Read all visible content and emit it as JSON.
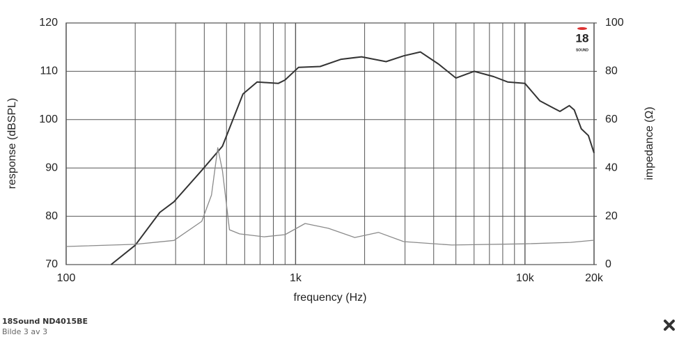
{
  "chart_data": {
    "type": "line",
    "xscale": "log",
    "xlabel": "frequency (Hz)",
    "ylabel": "response (dBSPL)",
    "y2label": "impedance (Ω)",
    "logo": "18",
    "logo_sub": "SOUND",
    "xlim": [
      100,
      20000
    ],
    "xticks": [
      100,
      {
        "value": 1000,
        "label": "1k"
      },
      {
        "value": 10000,
        "label": "10k"
      },
      {
        "value": 20000,
        "label": "20k"
      }
    ],
    "xminor": [
      200,
      300,
      400,
      500,
      600,
      700,
      800,
      900,
      2000,
      3000,
      4000,
      5000,
      6000,
      7000,
      8000,
      9000
    ],
    "ylim": [
      70,
      120
    ],
    "yticks": [
      70,
      80,
      90,
      100,
      110,
      120
    ],
    "y2lim": [
      0,
      100
    ],
    "y2ticks": [
      0,
      20,
      40,
      60,
      80,
      100
    ],
    "grid": true,
    "series": [
      {
        "color": "#333333",
        "x": [
          157,
          200,
          256,
          295,
          390,
          480,
          590,
          680,
          840,
          900,
          1030,
          1280,
          1580,
          1940,
          2480,
          2960,
          3500,
          4200,
          5000,
          6000,
          7300,
          8400,
          10000,
          11600,
          13300,
          14200,
          15600,
          16400,
          17600,
          18900,
          20000
        ],
        "values": [
          70,
          74,
          80.8,
          83,
          89.5,
          94.5,
          105.3,
          107.8,
          107.5,
          108.2,
          110.8,
          111,
          112.5,
          113,
          112,
          113.2,
          114,
          111.5,
          108.6,
          110,
          108.9,
          107.8,
          107.5,
          103.9,
          102.4,
          101.7,
          102.9,
          102,
          98.1,
          96.7,
          93.1
        ]
      },
      {
        "color": "#8a8a8a",
        "axis": "y2",
        "x": [
          100,
          200,
          295,
          390,
          430,
          458,
          480,
          515,
          570,
          730,
          900,
          1100,
          1390,
          1810,
          2300,
          2960,
          4800,
          10000,
          15800,
          20000
        ],
        "values": [
          7.5,
          8.4,
          10,
          17.9,
          28.8,
          48.4,
          38.9,
          14.4,
          12.7,
          11.5,
          12.4,
          17,
          15,
          11.2,
          13.3,
          9.5,
          8.1,
          8.6,
          9.2,
          10.1
        ]
      }
    ]
  },
  "caption": {
    "title": "18Sound ND4015BE",
    "subtitle": "Bilde 3 av 3"
  }
}
